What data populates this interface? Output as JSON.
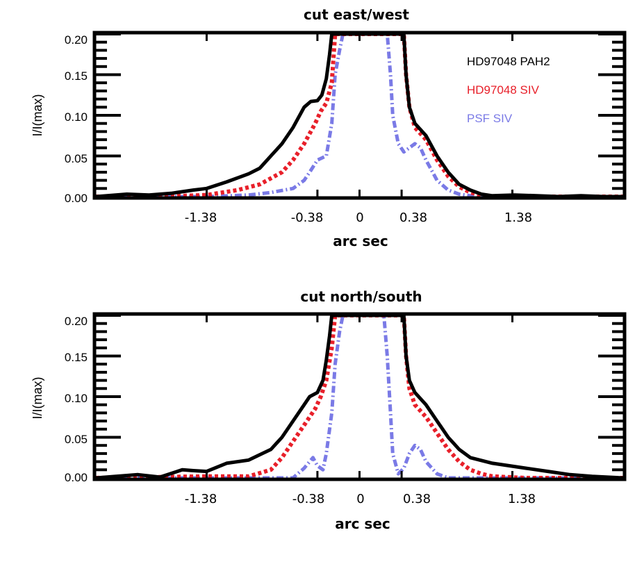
{
  "chart_data": [
    {
      "type": "line",
      "title": "cut east/west",
      "xlabel": "arc sec",
      "ylabel": "I/I(max)",
      "xlim": [
        -2.38,
        2.38
      ],
      "ylim": [
        0,
        0.2
      ],
      "xticks": [
        -1.38,
        -0.38,
        0,
        0.38,
        1.38
      ],
      "xtick_labels": [
        "-1.38",
        "-0.38",
        "0",
        "0.38",
        "1.38"
      ],
      "yticks": [
        0,
        0.05,
        0.1,
        0.15,
        0.2
      ],
      "ytick_labels": [
        "0.00",
        "0.05",
        "0.10",
        "0.15",
        "0.20"
      ],
      "legend_position": "top-right",
      "series": [
        {
          "name": "HD97048 PAH2",
          "color": "#000000",
          "style": "solid",
          "x": [
            -2.38,
            -2.1,
            -1.9,
            -1.7,
            -1.5,
            -1.38,
            -1.2,
            -1.0,
            -0.9,
            -0.8,
            -0.7,
            -0.6,
            -0.5,
            -0.44,
            -0.38,
            -0.34,
            -0.3,
            -0.27,
            -0.25,
            0.4,
            0.42,
            0.45,
            0.5,
            0.6,
            0.7,
            0.8,
            0.9,
            1.0,
            1.1,
            1.2,
            1.4,
            1.6,
            1.8,
            2.0,
            2.2,
            2.38
          ],
          "y": [
            0.0,
            0.003,
            0.002,
            0.004,
            0.008,
            0.01,
            0.018,
            0.028,
            0.035,
            0.05,
            0.065,
            0.085,
            0.11,
            0.117,
            0.118,
            0.125,
            0.145,
            0.175,
            0.2,
            0.2,
            0.15,
            0.11,
            0.09,
            0.075,
            0.05,
            0.03,
            0.015,
            0.008,
            0.003,
            0.001,
            0.002,
            0.001,
            0.0,
            0.001,
            0.0,
            0.0
          ]
        },
        {
          "name": "HD97048 SIV",
          "color": "#e8202a",
          "style": "dotted",
          "x": [
            -2.38,
            -1.8,
            -1.38,
            -1.1,
            -0.9,
            -0.7,
            -0.6,
            -0.5,
            -0.4,
            -0.35,
            -0.3,
            -0.25,
            -0.22,
            0.4,
            0.42,
            0.45,
            0.5,
            0.6,
            0.7,
            0.8,
            0.9,
            1.0,
            1.1,
            1.2,
            1.5,
            2.38
          ],
          "y": [
            0.0,
            0.0,
            0.002,
            0.008,
            0.015,
            0.03,
            0.045,
            0.065,
            0.09,
            0.105,
            0.115,
            0.14,
            0.2,
            0.2,
            0.15,
            0.11,
            0.085,
            0.07,
            0.045,
            0.025,
            0.012,
            0.005,
            0.002,
            0.0,
            0.0,
            0.0
          ]
        },
        {
          "name": "PSF SIV",
          "color": "#7a7ae6",
          "style": "dash-dot",
          "x": [
            -2.38,
            -1.38,
            -1.0,
            -0.8,
            -0.6,
            -0.5,
            -0.45,
            -0.38,
            -0.3,
            -0.25,
            -0.22,
            -0.18,
            -0.15,
            0.25,
            0.28,
            0.3,
            0.35,
            0.4,
            0.45,
            0.5,
            0.55,
            0.6,
            0.7,
            0.8,
            0.9,
            1.0,
            1.2,
            2.38
          ],
          "y": [
            0.0,
            0.0,
            0.002,
            0.005,
            0.01,
            0.02,
            0.03,
            0.045,
            0.05,
            0.09,
            0.15,
            0.18,
            0.2,
            0.2,
            0.15,
            0.1,
            0.065,
            0.055,
            0.06,
            0.065,
            0.06,
            0.045,
            0.02,
            0.008,
            0.003,
            0.001,
            0.0,
            0.0
          ]
        }
      ]
    },
    {
      "type": "line",
      "title": "cut north/south",
      "xlabel": "arc sec",
      "ylabel": "I/I(max)",
      "xlim": [
        -2.38,
        2.38
      ],
      "ylim": [
        0,
        0.2
      ],
      "xticks": [
        -1.38,
        -0.38,
        0,
        0.38,
        1.38
      ],
      "xtick_labels": [
        "-1.38",
        "-0.38",
        "0",
        "0.38",
        "1.38"
      ],
      "yticks": [
        0,
        0.05,
        0.1,
        0.15,
        0.2
      ],
      "ytick_labels": [
        "0.00",
        "0.05",
        "0.10",
        "0.15",
        "0.20"
      ],
      "series": [
        {
          "name": "HD97048 PAH2",
          "color": "#000000",
          "style": "solid",
          "x": [
            -2.38,
            -2.2,
            -2.0,
            -1.8,
            -1.6,
            -1.5,
            -1.38,
            -1.2,
            -1.0,
            -0.8,
            -0.7,
            -0.6,
            -0.5,
            -0.45,
            -0.38,
            -0.33,
            -0.3,
            -0.27,
            -0.25,
            0.4,
            0.42,
            0.45,
            0.5,
            0.6,
            0.7,
            0.8,
            0.9,
            1.0,
            1.2,
            1.5,
            1.7,
            1.9,
            2.1,
            2.38
          ],
          "y": [
            0.0,
            0.002,
            0.004,
            0.001,
            0.01,
            0.009,
            0.008,
            0.018,
            0.022,
            0.035,
            0.05,
            0.07,
            0.09,
            0.1,
            0.105,
            0.12,
            0.145,
            0.175,
            0.2,
            0.2,
            0.15,
            0.12,
            0.105,
            0.09,
            0.07,
            0.05,
            0.035,
            0.025,
            0.018,
            0.012,
            0.008,
            0.004,
            0.002,
            0.0
          ]
        },
        {
          "name": "HD97048 SIV",
          "color": "#e8202a",
          "style": "dotted",
          "x": [
            -2.38,
            -1.38,
            -1.0,
            -0.8,
            -0.7,
            -0.6,
            -0.5,
            -0.4,
            -0.35,
            -0.3,
            -0.25,
            -0.22,
            0.4,
            0.42,
            0.45,
            0.5,
            0.6,
            0.7,
            0.8,
            0.9,
            1.0,
            1.1,
            1.2,
            1.5,
            2.38
          ],
          "y": [
            0.0,
            0.002,
            0.002,
            0.01,
            0.025,
            0.045,
            0.065,
            0.085,
            0.1,
            0.12,
            0.16,
            0.2,
            0.2,
            0.15,
            0.11,
            0.09,
            0.075,
            0.055,
            0.035,
            0.02,
            0.01,
            0.005,
            0.002,
            0.0,
            0.0
          ]
        },
        {
          "name": "PSF SIV",
          "color": "#7a7ae6",
          "style": "dash-dot",
          "x": [
            -2.38,
            -1.38,
            -0.6,
            -0.5,
            -0.42,
            -0.38,
            -0.33,
            -0.3,
            -0.25,
            -0.22,
            -0.18,
            -0.15,
            0.22,
            0.25,
            0.28,
            0.3,
            0.35,
            0.4,
            0.45,
            0.5,
            0.55,
            0.6,
            0.7,
            0.8,
            2.38
          ],
          "y": [
            0.0,
            0.0,
            0.0,
            0.012,
            0.025,
            0.015,
            0.01,
            0.03,
            0.08,
            0.14,
            0.18,
            0.2,
            0.2,
            0.15,
            0.08,
            0.03,
            0.005,
            0.012,
            0.03,
            0.04,
            0.035,
            0.02,
            0.005,
            0.0,
            0.0
          ]
        }
      ]
    }
  ]
}
